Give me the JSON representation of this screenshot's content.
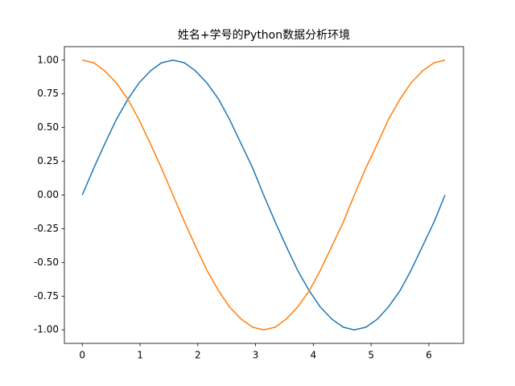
{
  "chart_data": {
    "type": "line",
    "title": "姓名+学号的Python数据分析环境",
    "x": [
      0,
      0.2,
      0.39,
      0.59,
      0.79,
      0.98,
      1.18,
      1.37,
      1.57,
      1.77,
      1.96,
      2.16,
      2.36,
      2.55,
      2.75,
      2.95,
      3.14,
      3.34,
      3.53,
      3.73,
      3.93,
      4.12,
      4.32,
      4.52,
      4.71,
      4.91,
      5.11,
      5.3,
      5.5,
      5.69,
      5.89,
      6.09,
      6.28
    ],
    "series": [
      {
        "color": "#1f77b4",
        "values": [
          0,
          0.2,
          0.38,
          0.56,
          0.71,
          0.83,
          0.92,
          0.98,
          1.0,
          0.98,
          0.92,
          0.83,
          0.71,
          0.56,
          0.38,
          0.2,
          0,
          -0.2,
          -0.38,
          -0.56,
          -0.71,
          -0.83,
          -0.92,
          -0.98,
          -1.0,
          -0.98,
          -0.92,
          -0.83,
          -0.71,
          -0.56,
          -0.38,
          -0.2,
          0
        ]
      },
      {
        "color": "#ff7f0e",
        "values": [
          1.0,
          0.98,
          0.92,
          0.83,
          0.71,
          0.56,
          0.38,
          0.2,
          0,
          -0.2,
          -0.38,
          -0.56,
          -0.71,
          -0.83,
          -0.92,
          -0.98,
          -1.0,
          -0.98,
          -0.92,
          -0.83,
          -0.71,
          -0.56,
          -0.38,
          -0.2,
          0,
          0.2,
          0.38,
          0.56,
          0.71,
          0.83,
          0.92,
          0.98,
          1.0
        ]
      }
    ],
    "xlim": [
      -0.31,
      6.6
    ],
    "ylim": [
      -1.1,
      1.1
    ],
    "xticks": [
      0,
      1,
      2,
      3,
      4,
      5,
      6
    ],
    "yticks": [
      {
        "value": -1,
        "label": "-1.00"
      },
      {
        "value": -0.75,
        "label": "-0.75"
      },
      {
        "value": -0.5,
        "label": "-0.50"
      },
      {
        "value": -0.25,
        "label": "-0.25"
      },
      {
        "value": 0,
        "label": "0.00"
      },
      {
        "value": 0.25,
        "label": "0.25"
      },
      {
        "value": 0.5,
        "label": "0.50"
      },
      {
        "value": 0.75,
        "label": "0.75"
      },
      {
        "value": 1,
        "label": "1.00"
      }
    ]
  }
}
